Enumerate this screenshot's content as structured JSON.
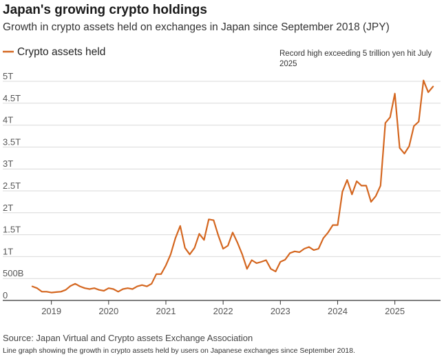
{
  "header": {
    "title": "Japan's growing crypto holdings",
    "subtitle": "Growth in crypto assets held on exchanges in Japan since September 2018 (JPY)"
  },
  "footer": {
    "source": "Source: Japan Virtual and Crypto assets Exchange Association",
    "description": "Line graph showing the growth in crypto assets held by users on Japanese exchanges since September 2018."
  },
  "chart_data": {
    "type": "line",
    "title": "Japan's growing crypto holdings",
    "subtitle": "Growth in crypto assets held on exchanges in Japan since September 2018 (JPY)",
    "xlabel": "",
    "ylabel": "",
    "ylim": [
      0,
      5.2
    ],
    "xlim": [
      "2018-08",
      "2025-10"
    ],
    "y_ticks": [
      {
        "value": 0,
        "label": "0"
      },
      {
        "value": 0.5,
        "label": "500B"
      },
      {
        "value": 1,
        "label": "1T"
      },
      {
        "value": 1.5,
        "label": "1.5T"
      },
      {
        "value": 2,
        "label": "2T"
      },
      {
        "value": 2.5,
        "label": "2.5T"
      },
      {
        "value": 3,
        "label": "3T"
      },
      {
        "value": 3.5,
        "label": "3.5T"
      },
      {
        "value": 4,
        "label": "4T"
      },
      {
        "value": 4.5,
        "label": "4.5T"
      },
      {
        "value": 5,
        "label": "5T"
      }
    ],
    "x_ticks": [
      {
        "value": "2019-01",
        "label": "2019"
      },
      {
        "value": "2020-01",
        "label": "2020"
      },
      {
        "value": "2021-01",
        "label": "2021"
      },
      {
        "value": "2022-01",
        "label": "2022"
      },
      {
        "value": "2023-01",
        "label": "2023"
      },
      {
        "value": "2024-01",
        "label": "2024"
      },
      {
        "value": "2025-01",
        "label": "2025"
      }
    ],
    "grid": true,
    "legend": "top-left",
    "annotation": "Record high exceeding 5 trillion yen hit July 2025",
    "series": [
      {
        "name": "Crypto assets held",
        "color": "#d4661f",
        "points": [
          [
            "2018-09",
            0.32
          ],
          [
            "2018-10",
            0.28
          ],
          [
            "2018-11",
            0.2
          ],
          [
            "2018-12",
            0.2
          ],
          [
            "2019-01",
            0.18
          ],
          [
            "2019-02",
            0.19
          ],
          [
            "2019-03",
            0.2
          ],
          [
            "2019-04",
            0.24
          ],
          [
            "2019-05",
            0.33
          ],
          [
            "2019-06",
            0.38
          ],
          [
            "2019-07",
            0.32
          ],
          [
            "2019-08",
            0.28
          ],
          [
            "2019-09",
            0.26
          ],
          [
            "2019-10",
            0.28
          ],
          [
            "2019-11",
            0.24
          ],
          [
            "2019-12",
            0.22
          ],
          [
            "2020-01",
            0.28
          ],
          [
            "2020-02",
            0.26
          ],
          [
            "2020-03",
            0.2
          ],
          [
            "2020-04",
            0.26
          ],
          [
            "2020-05",
            0.28
          ],
          [
            "2020-06",
            0.26
          ],
          [
            "2020-07",
            0.32
          ],
          [
            "2020-08",
            0.35
          ],
          [
            "2020-09",
            0.32
          ],
          [
            "2020-10",
            0.38
          ],
          [
            "2020-11",
            0.6
          ],
          [
            "2020-12",
            0.6
          ],
          [
            "2021-01",
            0.8
          ],
          [
            "2021-02",
            1.05
          ],
          [
            "2021-03",
            1.42
          ],
          [
            "2021-04",
            1.7
          ],
          [
            "2021-05",
            1.2
          ],
          [
            "2021-06",
            1.05
          ],
          [
            "2021-07",
            1.2
          ],
          [
            "2021-08",
            1.52
          ],
          [
            "2021-09",
            1.38
          ],
          [
            "2021-10",
            1.85
          ],
          [
            "2021-11",
            1.83
          ],
          [
            "2021-12",
            1.48
          ],
          [
            "2022-01",
            1.18
          ],
          [
            "2022-02",
            1.25
          ],
          [
            "2022-03",
            1.55
          ],
          [
            "2022-04",
            1.32
          ],
          [
            "2022-05",
            1.05
          ],
          [
            "2022-06",
            0.72
          ],
          [
            "2022-07",
            0.92
          ],
          [
            "2022-08",
            0.85
          ],
          [
            "2022-09",
            0.88
          ],
          [
            "2022-10",
            0.92
          ],
          [
            "2022-11",
            0.72
          ],
          [
            "2022-12",
            0.66
          ],
          [
            "2023-01",
            0.88
          ],
          [
            "2023-02",
            0.93
          ],
          [
            "2023-03",
            1.08
          ],
          [
            "2023-04",
            1.12
          ],
          [
            "2023-05",
            1.1
          ],
          [
            "2023-06",
            1.18
          ],
          [
            "2023-07",
            1.22
          ],
          [
            "2023-08",
            1.15
          ],
          [
            "2023-09",
            1.18
          ],
          [
            "2023-10",
            1.42
          ],
          [
            "2023-11",
            1.55
          ],
          [
            "2023-12",
            1.72
          ],
          [
            "2024-01",
            1.72
          ],
          [
            "2024-02",
            2.48
          ],
          [
            "2024-03",
            2.75
          ],
          [
            "2024-04",
            2.42
          ],
          [
            "2024-05",
            2.72
          ],
          [
            "2024-06",
            2.62
          ],
          [
            "2024-07",
            2.62
          ],
          [
            "2024-08",
            2.25
          ],
          [
            "2024-09",
            2.38
          ],
          [
            "2024-10",
            2.62
          ],
          [
            "2024-11",
            4.05
          ],
          [
            "2024-12",
            4.18
          ],
          [
            "2025-01",
            4.72
          ],
          [
            "2025-02",
            3.48
          ],
          [
            "2025-03",
            3.35
          ],
          [
            "2025-04",
            3.52
          ],
          [
            "2025-05",
            3.98
          ],
          [
            "2025-06",
            4.08
          ],
          [
            "2025-07",
            5.02
          ],
          [
            "2025-08",
            4.75
          ],
          [
            "2025-09",
            4.88
          ]
        ]
      }
    ]
  }
}
